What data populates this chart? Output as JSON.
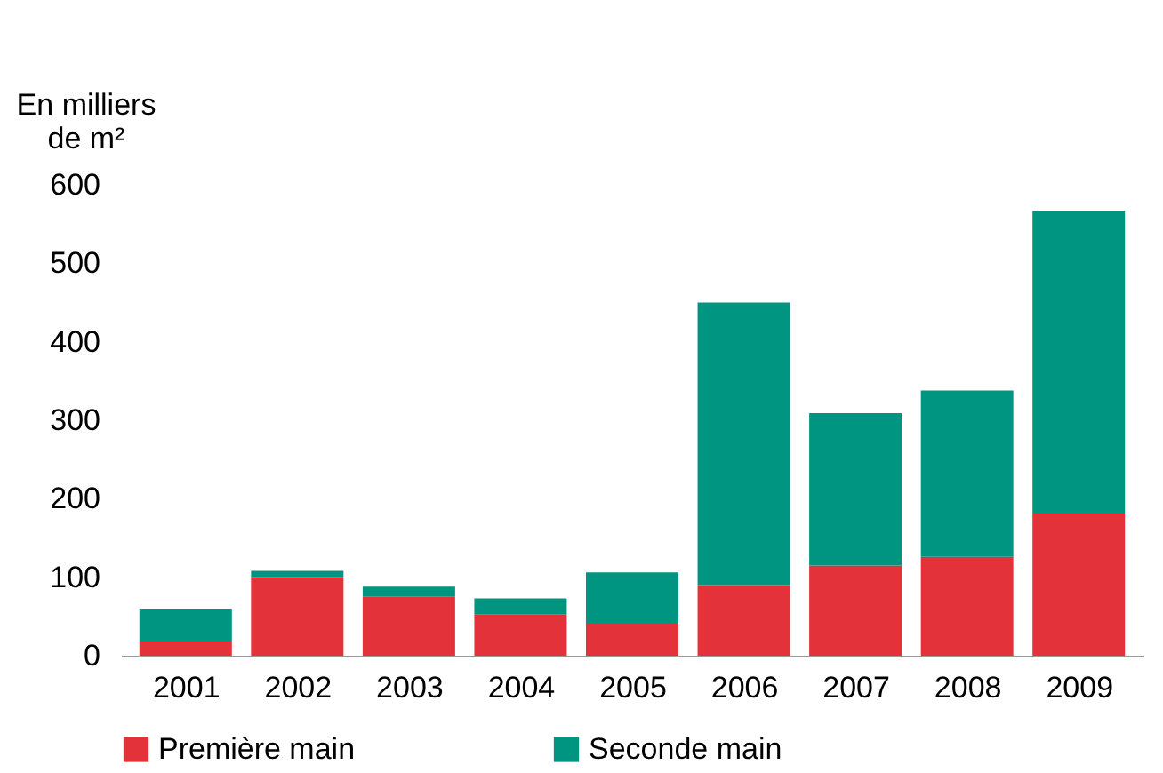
{
  "chart_data": {
    "type": "bar",
    "stacked": true,
    "ylabel": "En milliers de m²",
    "categories": [
      "2001",
      "2002",
      "2003",
      "2004",
      "2005",
      "2006",
      "2007",
      "2008",
      "2009"
    ],
    "series": [
      {
        "name": "Première main",
        "color": "#e3323a",
        "values": [
          18,
          100,
          75,
          53,
          42,
          90,
          115,
          126,
          181
        ]
      },
      {
        "name": "Seconde main",
        "color": "#009580",
        "values": [
          42,
          8,
          13,
          20,
          64,
          360,
          194,
          212,
          386
        ]
      }
    ],
    "ylim": [
      0,
      600
    ],
    "yticks": [
      0,
      100,
      200,
      300,
      400,
      500,
      600
    ],
    "grid": false,
    "legend": "bottom"
  }
}
